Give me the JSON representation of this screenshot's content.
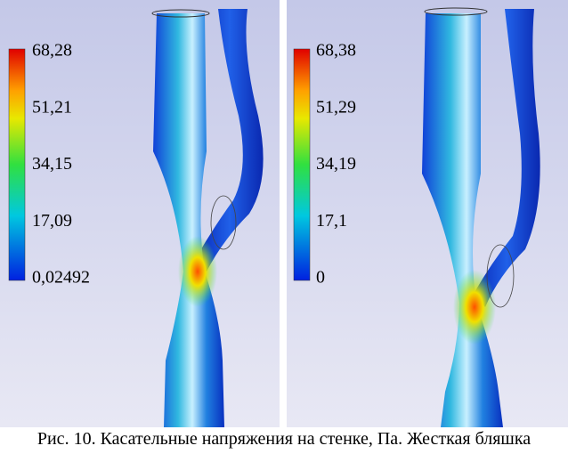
{
  "panels": [
    {
      "colorbar_labels": [
        "68,28",
        "51,21",
        "34,15",
        "17,09",
        "0,02492"
      ]
    },
    {
      "colorbar_labels": [
        "68,38",
        "51,29",
        "34,19",
        "17,1",
        "0"
      ]
    }
  ],
  "caption": "Рис. 10. Касательные напряжения на стенке, Па. Жесткая бляшка"
}
